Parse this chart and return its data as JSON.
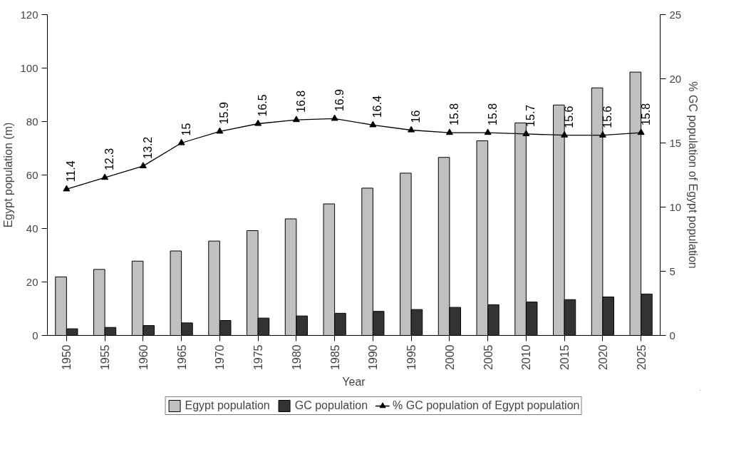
{
  "chart_data": {
    "type": "bar",
    "xlabel": "Year",
    "ylabel": "Egypt population (m)",
    "y2label": "% GC population of Egypt population",
    "categories": [
      "1950",
      "1955",
      "1960",
      "1965",
      "1970",
      "1975",
      "1980",
      "1985",
      "1990",
      "1995",
      "2000",
      "2005",
      "2010",
      "2015",
      "2020",
      "2025"
    ],
    "series": [
      {
        "name": "Egypt population",
        "color": "#c0c0c0",
        "values": [
          21.9,
          24.7,
          27.8,
          31.6,
          35.3,
          39.2,
          43.6,
          49.2,
          55.1,
          60.7,
          66.6,
          72.8,
          79.5,
          86.2,
          92.6,
          98.5
        ]
      },
      {
        "name": "GC population",
        "color": "#333333",
        "values": [
          2.5,
          3.0,
          3.7,
          4.7,
          5.6,
          6.5,
          7.3,
          8.3,
          9.0,
          9.7,
          10.5,
          11.5,
          12.5,
          13.4,
          14.4,
          15.5
        ]
      },
      {
        "name": "% GC population of Egypt population",
        "type": "line",
        "axis": "y2",
        "color": "#000000",
        "marker": "triangle",
        "values": [
          11.4,
          12.3,
          13.2,
          15,
          15.9,
          16.5,
          16.8,
          16.9,
          16.4,
          16,
          15.8,
          15.8,
          15.7,
          15.6,
          15.6,
          15.8
        ],
        "value_labels": [
          "11.4",
          "12.3",
          "13.2",
          "15",
          "15.9",
          "16.5",
          "16.8",
          "16.9",
          "16.4",
          "16",
          "15.8",
          "15.8",
          "15.7",
          "15.6",
          "15.6",
          "15.8"
        ]
      }
    ],
    "ylim": [
      0,
      120
    ],
    "yticks": [
      0,
      20,
      40,
      60,
      80,
      100,
      120
    ],
    "y2lim": [
      0,
      25
    ],
    "y2ticks": [
      0,
      5,
      10,
      15,
      20,
      25
    ],
    "grid": false,
    "legend": "bottom"
  }
}
